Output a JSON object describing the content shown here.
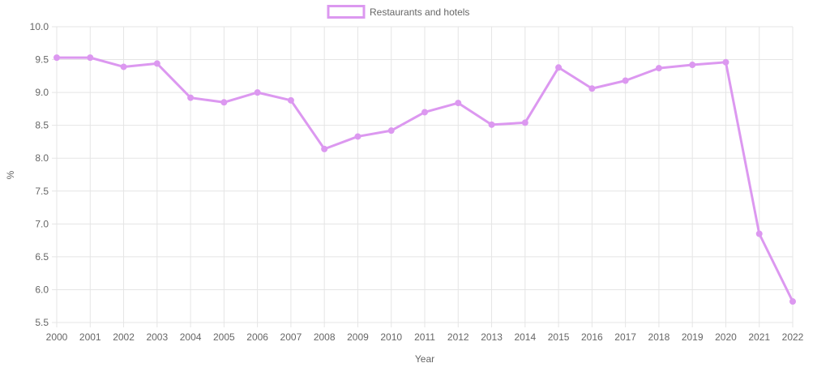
{
  "chart_data": {
    "type": "line",
    "title": "",
    "xlabel": "Year",
    "ylabel": "%",
    "ylim": [
      5.5,
      10.0
    ],
    "yticks": [
      "10.0",
      "9.5",
      "9.0",
      "8.5",
      "8.0",
      "7.5",
      "7.0",
      "6.5",
      "6.0",
      "5.5"
    ],
    "categories": [
      "2000",
      "2001",
      "2002",
      "2003",
      "2004",
      "2005",
      "2006",
      "2007",
      "2008",
      "2009",
      "2010",
      "2011",
      "2012",
      "2013",
      "2014",
      "2015",
      "2016",
      "2017",
      "2018",
      "2019",
      "2020",
      "2021",
      "2022"
    ],
    "series": [
      {
        "name": "Restaurants and hotels",
        "color": "#dc98f0",
        "values": [
          9.53,
          9.53,
          9.39,
          9.44,
          8.92,
          8.85,
          9.0,
          8.88,
          8.14,
          8.33,
          8.42,
          8.7,
          8.84,
          8.51,
          8.54,
          9.38,
          9.06,
          9.18,
          9.37,
          9.42,
          9.46,
          6.85,
          5.82
        ]
      }
    ],
    "grid": true,
    "legend_position": "top-center"
  }
}
